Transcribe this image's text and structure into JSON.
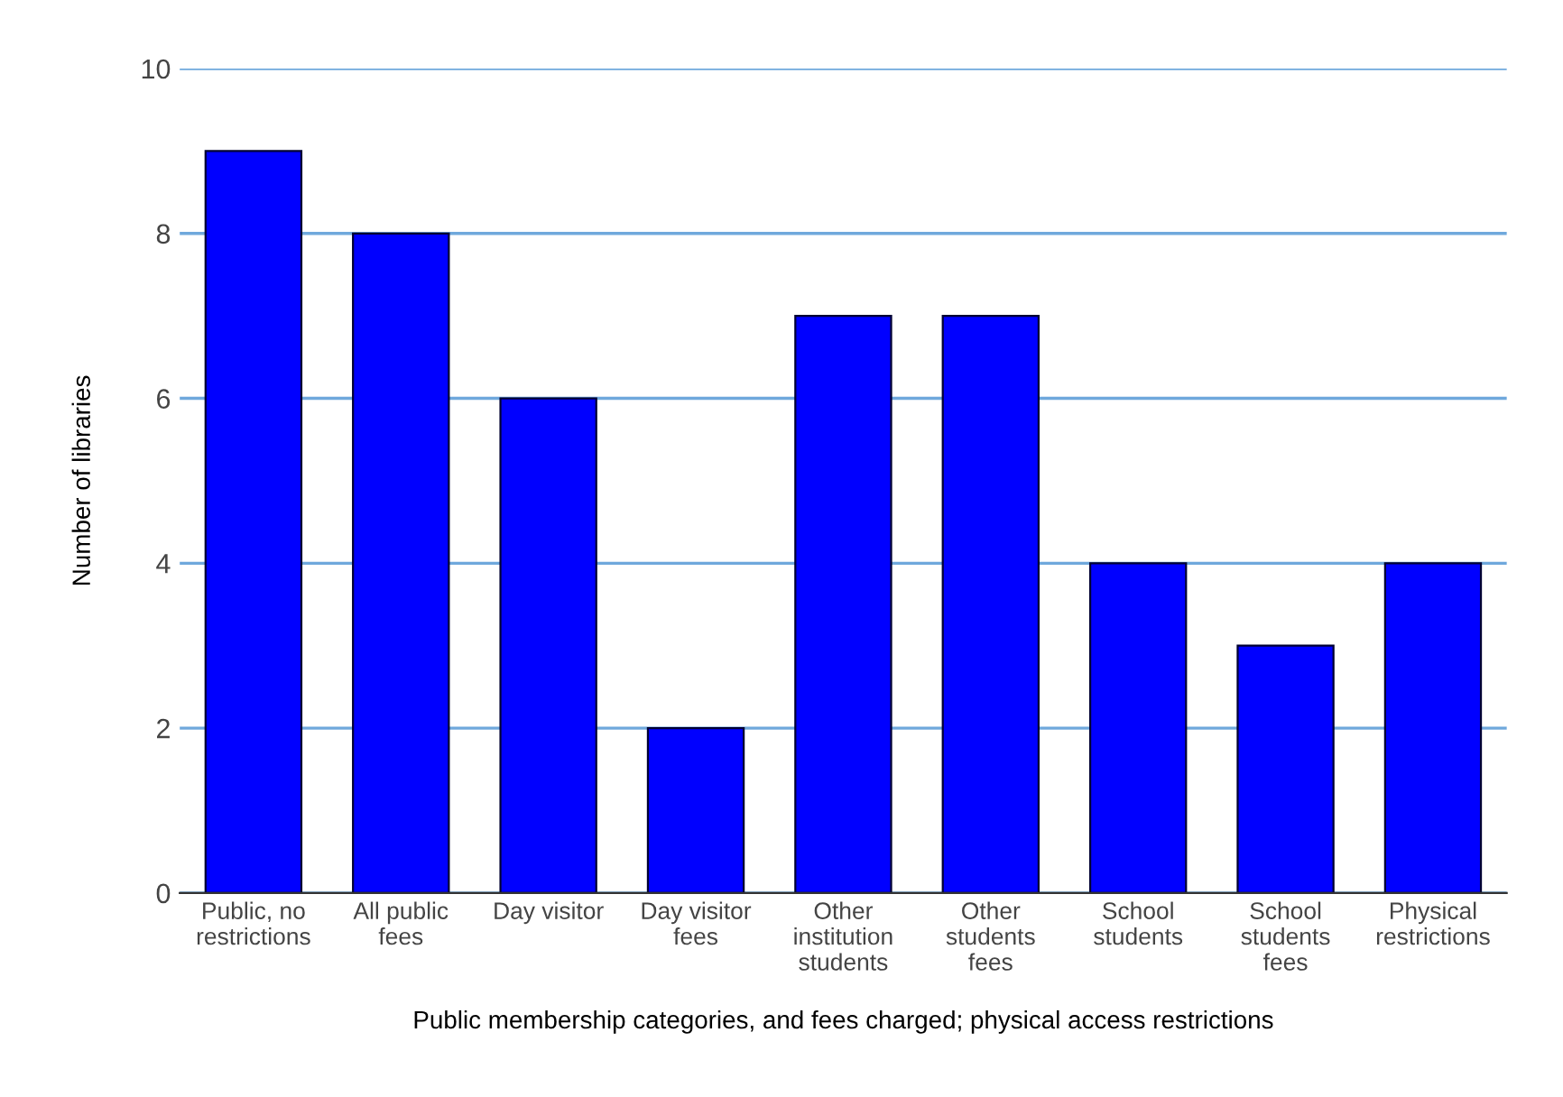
{
  "chart_data": {
    "type": "bar",
    "xlabel": "Public membership categories, and fees charged; physical access restrictions",
    "ylabel": "Number of libraries",
    "categories": [
      "Public, no\nrestrictions",
      "All public\nfees",
      "Day visitor",
      "Day visitor\nfees",
      "Other\ninstitution\nstudents",
      "Other\nstudents\nfees",
      "School\nstudents",
      "School\nstudents\nfees",
      "Physical\nrestrictions"
    ],
    "values": [
      9,
      8,
      6,
      2,
      7,
      7,
      4,
      3,
      4
    ],
    "color": "#0000ff",
    "ylim": [
      0,
      10
    ],
    "yticks": [
      0,
      2,
      4,
      6,
      8,
      10
    ],
    "grid": "y"
  }
}
